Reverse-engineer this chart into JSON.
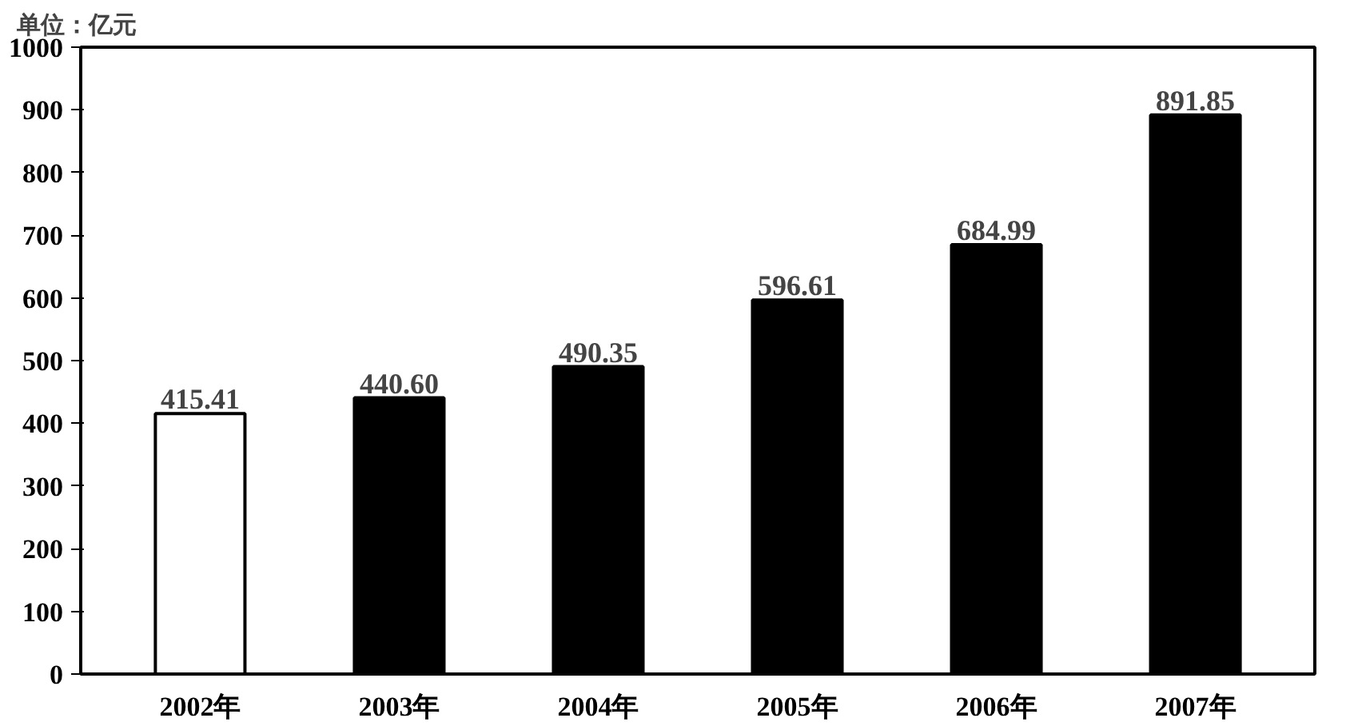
{
  "chart_data": {
    "type": "bar",
    "ylabel": "单位：亿元",
    "categories": [
      "2002年",
      "2003年",
      "2004年",
      "2005年",
      "2006年",
      "2007年"
    ],
    "values": [
      415.41,
      440.6,
      490.35,
      596.61,
      684.99,
      891.85
    ],
    "value_labels": [
      "415.41",
      "440.60",
      "490.35",
      "596.61",
      "684.99",
      "891.85"
    ],
    "colors": [
      "#ffffff",
      "#000000",
      "#000000",
      "#000000",
      "#000000",
      "#000000"
    ],
    "ylim": [
      0,
      1000
    ],
    "yticks": [
      0,
      100,
      200,
      300,
      400,
      500,
      600,
      700,
      800,
      900,
      1000
    ],
    "grid": false
  }
}
